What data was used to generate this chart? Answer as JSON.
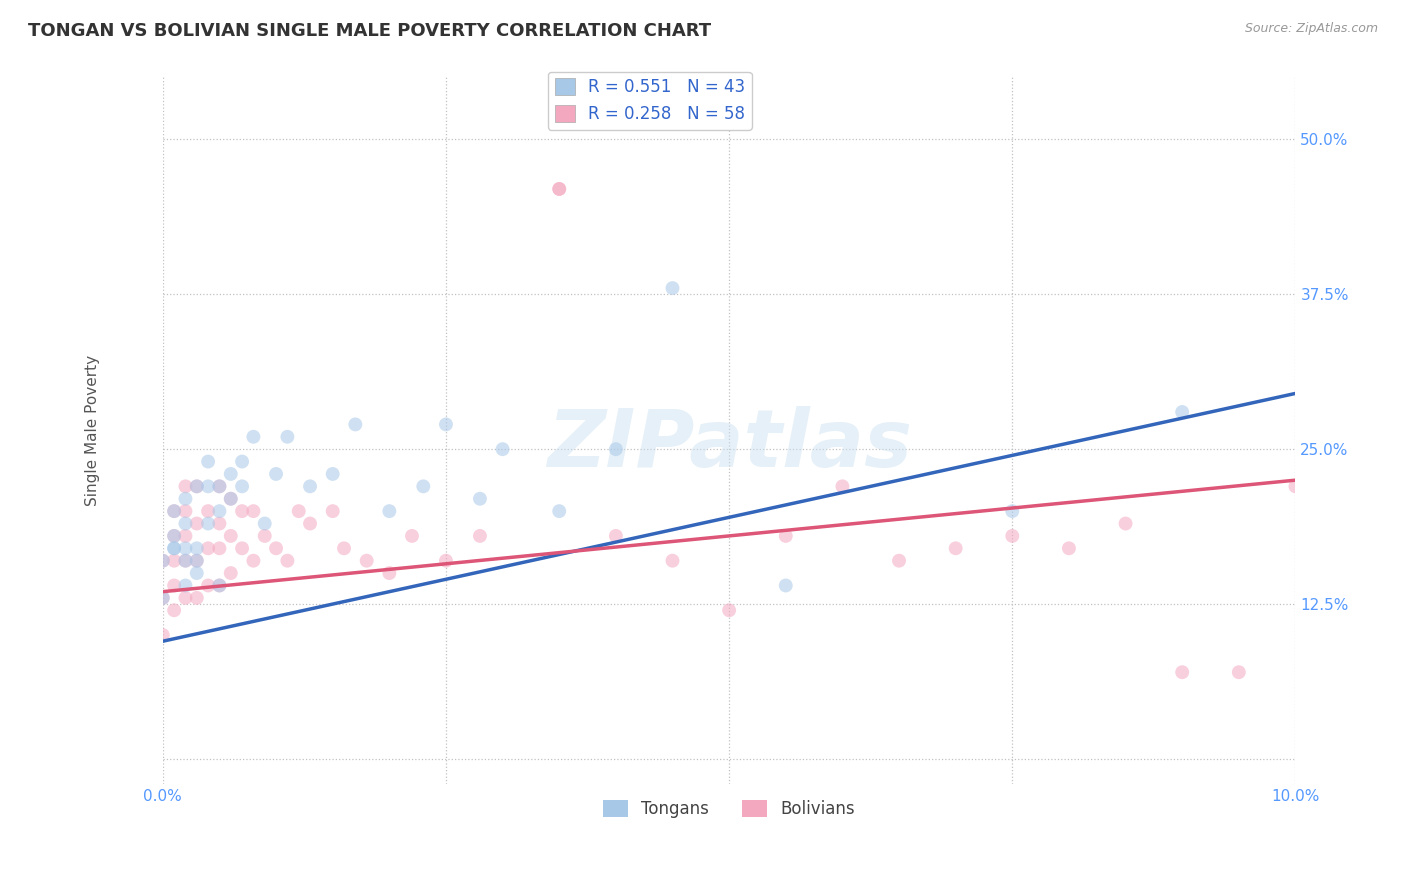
{
  "title": "TONGAN VS BOLIVIAN SINGLE MALE POVERTY CORRELATION CHART",
  "source": "Source: ZipAtlas.com",
  "ylabel": "Single Male Poverty",
  "xlim": [
    0,
    0.1
  ],
  "ylim": [
    -0.02,
    0.55
  ],
  "xtick_positions": [
    0.0,
    0.025,
    0.05,
    0.075,
    0.1
  ],
  "xtick_labels": [
    "0.0%",
    "",
    "",
    "",
    "10.0%"
  ],
  "ytick_positions": [
    0.0,
    0.125,
    0.25,
    0.375,
    0.5
  ],
  "ytick_labels": [
    "",
    "12.5%",
    "25.0%",
    "37.5%",
    "50.0%"
  ],
  "tongan_color": "#a8c8e8",
  "bolivian_color": "#f4a8c0",
  "tongan_line_color": "#3366bb",
  "bolivian_line_color": "#dd5577",
  "tongan_R": 0.551,
  "tongan_N": 43,
  "bolivian_R": 0.258,
  "bolivian_N": 58,
  "background_color": "#ffffff",
  "grid_color": "#bbbbbb",
  "watermark": "ZIPatlas",
  "title_fontsize": 13,
  "axis_label_fontsize": 11,
  "tick_fontsize": 11,
  "tick_color": "#5599ff",
  "legend_fontsize": 12,
  "marker_size": 100,
  "marker_alpha": 0.55,
  "tongan_x": [
    0.0,
    0.0,
    0.001,
    0.001,
    0.001,
    0.001,
    0.002,
    0.002,
    0.002,
    0.002,
    0.002,
    0.003,
    0.003,
    0.003,
    0.003,
    0.004,
    0.004,
    0.004,
    0.005,
    0.005,
    0.005,
    0.006,
    0.006,
    0.007,
    0.007,
    0.008,
    0.009,
    0.01,
    0.011,
    0.013,
    0.015,
    0.017,
    0.02,
    0.023,
    0.025,
    0.028,
    0.03,
    0.035,
    0.04,
    0.045,
    0.055,
    0.075,
    0.09
  ],
  "tongan_y": [
    0.13,
    0.16,
    0.17,
    0.18,
    0.2,
    0.17,
    0.17,
    0.19,
    0.21,
    0.14,
    0.16,
    0.15,
    0.17,
    0.16,
    0.22,
    0.22,
    0.24,
    0.19,
    0.14,
    0.22,
    0.2,
    0.21,
    0.23,
    0.22,
    0.24,
    0.26,
    0.19,
    0.23,
    0.26,
    0.22,
    0.23,
    0.27,
    0.2,
    0.22,
    0.27,
    0.21,
    0.25,
    0.2,
    0.25,
    0.38,
    0.14,
    0.2,
    0.28
  ],
  "bolivian_x": [
    0.0,
    0.0,
    0.0,
    0.001,
    0.001,
    0.001,
    0.001,
    0.001,
    0.002,
    0.002,
    0.002,
    0.002,
    0.002,
    0.003,
    0.003,
    0.003,
    0.003,
    0.004,
    0.004,
    0.004,
    0.005,
    0.005,
    0.005,
    0.005,
    0.006,
    0.006,
    0.006,
    0.007,
    0.007,
    0.008,
    0.008,
    0.009,
    0.01,
    0.011,
    0.012,
    0.013,
    0.015,
    0.016,
    0.018,
    0.02,
    0.022,
    0.025,
    0.028,
    0.035,
    0.035,
    0.04,
    0.045,
    0.05,
    0.055,
    0.06,
    0.065,
    0.07,
    0.075,
    0.08,
    0.085,
    0.09,
    0.095,
    0.1
  ],
  "bolivian_y": [
    0.1,
    0.13,
    0.16,
    0.12,
    0.14,
    0.16,
    0.18,
    0.2,
    0.13,
    0.16,
    0.18,
    0.2,
    0.22,
    0.13,
    0.16,
    0.19,
    0.22,
    0.14,
    0.17,
    0.2,
    0.14,
    0.17,
    0.19,
    0.22,
    0.15,
    0.18,
    0.21,
    0.17,
    0.2,
    0.16,
    0.2,
    0.18,
    0.17,
    0.16,
    0.2,
    0.19,
    0.2,
    0.17,
    0.16,
    0.15,
    0.18,
    0.16,
    0.18,
    0.46,
    0.46,
    0.18,
    0.16,
    0.12,
    0.18,
    0.22,
    0.16,
    0.17,
    0.18,
    0.17,
    0.19,
    0.07,
    0.07,
    0.22
  ],
  "tongan_line_x": [
    0.0,
    0.1
  ],
  "tongan_line_y": [
    0.095,
    0.295
  ],
  "bolivian_line_x": [
    0.0,
    0.1
  ],
  "bolivian_line_y": [
    0.135,
    0.225
  ]
}
